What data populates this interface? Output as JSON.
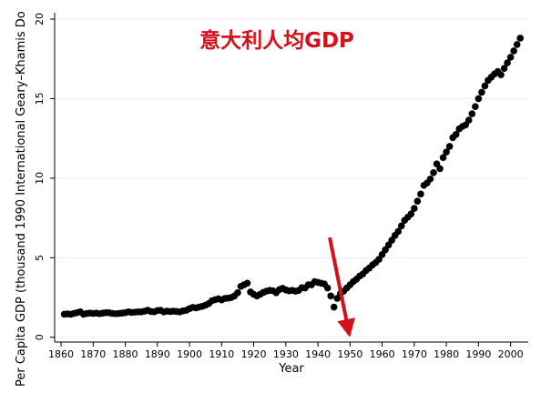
{
  "chart_data": {
    "type": "scatter",
    "title": "意大利人均GDP",
    "xlabel": "Year",
    "ylabel": "Per Capita GDP (thousand 1990 International Geary–Khamis Do",
    "xlim": [
      1858,
      2005.5
    ],
    "ylim": [
      -0.3,
      20.4
    ],
    "xticks": [
      1860,
      1870,
      1880,
      1890,
      1900,
      1910,
      1920,
      1930,
      1940,
      1950,
      1960,
      1970,
      1980,
      1990,
      2000
    ],
    "xtick_labels": [
      "1860",
      "1870",
      "1880",
      "1890",
      "1900",
      "1910",
      "1920",
      "1930",
      "1940",
      "1950",
      "1960",
      "1970",
      "1980",
      "1990",
      "2000"
    ],
    "yticks": [
      0,
      5,
      10,
      15,
      20
    ],
    "ytick_labels": [
      "0",
      "5",
      "10",
      "15",
      "20"
    ],
    "grid": "horizontal",
    "marker_color": "#000000",
    "annotation_color": "#d4101a",
    "arrow_target": {
      "x": 1950,
      "y": 0
    },
    "series": [
      {
        "x": [
          1861,
          1862,
          1863,
          1864,
          1865,
          1866,
          1867,
          1868,
          1869,
          1870,
          1871,
          1872,
          1873,
          1874,
          1875,
          1876,
          1877,
          1878,
          1879,
          1880,
          1881,
          1882,
          1883,
          1884,
          1885,
          1886,
          1887,
          1888,
          1889,
          1890,
          1891,
          1892,
          1893,
          1894,
          1895,
          1896,
          1897,
          1898,
          1899,
          1900,
          1901,
          1902,
          1903,
          1904,
          1905,
          1906,
          1907,
          1908,
          1909,
          1910,
          1911,
          1912,
          1913,
          1914,
          1915,
          1916,
          1917,
          1918,
          1919,
          1920,
          1921,
          1922,
          1923,
          1924,
          1925,
          1926,
          1927,
          1928,
          1929,
          1930,
          1931,
          1932,
          1933,
          1934,
          1935,
          1936,
          1937,
          1938,
          1939,
          1940,
          1941,
          1942,
          1943,
          1944,
          1945,
          1946,
          1947,
          1948,
          1949,
          1950,
          1951,
          1952,
          1953,
          1954,
          1955,
          1956,
          1957,
          1958,
          1959,
          1960,
          1961,
          1962,
          1963,
          1964,
          1965,
          1966,
          1967,
          1968,
          1969,
          1970,
          1971,
          1972,
          1973,
          1974,
          1975,
          1976,
          1977,
          1978,
          1979,
          1980,
          1981,
          1982,
          1983,
          1984,
          1985,
          1986,
          1987,
          1988,
          1989,
          1990,
          1991,
          1992,
          1993,
          1994,
          1995,
          1996,
          1997,
          1998,
          1999,
          2000,
          2001,
          2002,
          2003
        ],
        "y": [
          1.45,
          1.47,
          1.45,
          1.5,
          1.55,
          1.6,
          1.45,
          1.5,
          1.52,
          1.5,
          1.52,
          1.48,
          1.52,
          1.55,
          1.54,
          1.5,
          1.48,
          1.5,
          1.52,
          1.55,
          1.6,
          1.56,
          1.58,
          1.6,
          1.6,
          1.64,
          1.7,
          1.62,
          1.6,
          1.68,
          1.7,
          1.6,
          1.64,
          1.62,
          1.64,
          1.62,
          1.6,
          1.66,
          1.7,
          1.8,
          1.88,
          1.85,
          1.9,
          1.95,
          2.02,
          2.12,
          2.3,
          2.36,
          2.42,
          2.35,
          2.44,
          2.46,
          2.5,
          2.6,
          2.8,
          3.2,
          3.3,
          3.4,
          2.85,
          2.7,
          2.6,
          2.7,
          2.82,
          2.9,
          2.95,
          2.92,
          2.8,
          3.0,
          3.08,
          2.98,
          2.92,
          2.95,
          2.9,
          2.95,
          3.12,
          3.1,
          3.3,
          3.3,
          3.5,
          3.45,
          3.4,
          3.35,
          3.1,
          2.6,
          1.9,
          2.45,
          2.75,
          2.9,
          3.1,
          3.3,
          3.5,
          3.65,
          3.85,
          3.98,
          4.2,
          4.35,
          4.55,
          4.7,
          4.9,
          5.2,
          5.5,
          5.8,
          6.1,
          6.4,
          6.65,
          7.0,
          7.35,
          7.55,
          7.75,
          8.1,
          8.55,
          9.0,
          9.55,
          9.7,
          9.95,
          10.35,
          10.9,
          10.6,
          11.3,
          11.65,
          12.0,
          12.55,
          12.75,
          13.1,
          13.25,
          13.35,
          13.65,
          14.05,
          14.5,
          15.0,
          15.4,
          15.8,
          16.15,
          16.35,
          16.55,
          16.7,
          16.5,
          16.9,
          17.25,
          17.6,
          18.0,
          18.4,
          18.8
        ]
      }
    ]
  }
}
